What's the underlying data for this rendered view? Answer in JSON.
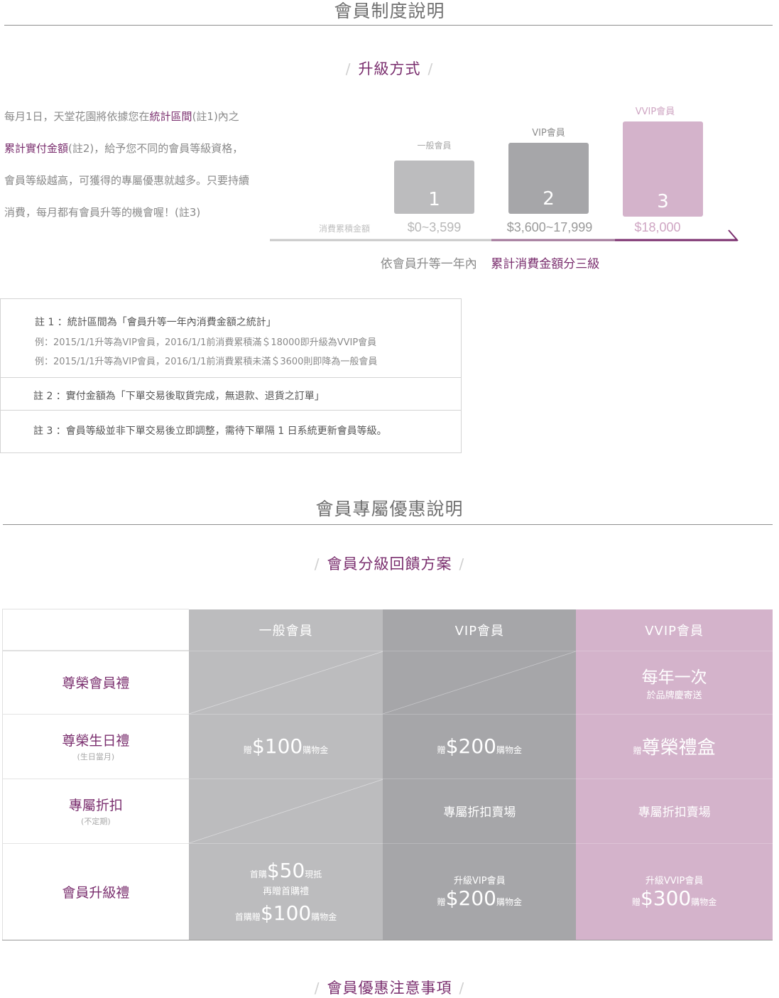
{
  "section1": {
    "title": "會員制度說明",
    "subtitle": "升級方式",
    "intro": {
      "p1": "每月1日，天堂花園將依據您在",
      "hl1": "統計區間",
      "p2": "(註1)內之",
      "hl2": "累計實付金額",
      "p3": "(註2)，給予您不同的會員等級資格，會員等級越高，可獲得的專屬優惠就越多。只要持續消費，每月都有會員升等的機會喔！(註3)"
    },
    "tiers": [
      {
        "label": "一般會員",
        "number": "1",
        "range": "$0~3,599"
      },
      {
        "label": "VIP會員",
        "number": "2",
        "range": "$3,600~17,999"
      },
      {
        "label": "VVIP會員",
        "number": "3",
        "range": "$18,000"
      }
    ],
    "axis_label": "消費累積金額",
    "caption_plain": "依會員升等一年內",
    "caption_highlight": "累計消費金額分三級",
    "notes": {
      "note1": "註 1 ：統計區間為「會員升等一年內消費金額之統計」",
      "note1_ex1": "例：2015/1/1升等為VIP會員，2016/1/1前消費累積滿＄18000即升級為VVIP會員",
      "note1_ex2": "例：2015/1/1升等為VIP會員，2016/1/1前消費累積未滿＄3600則即降為一般會員",
      "note2": "註 2 ：實付金額為「下單交易後取貨完成，無退款、退貨之訂單」",
      "note3": "註 3 ：會員等級並非下單交易後立即調整，需待下單隔 1 日系統更新會員等級。"
    }
  },
  "section2": {
    "title": "會員專屬優惠說明",
    "subtitle": "會員分級回饋方案",
    "table": {
      "headers": [
        "一般會員",
        "VIP會員",
        "VVIP會員"
      ],
      "rows": {
        "gift": {
          "label": "尊榮會員禮",
          "vvip_main": "每年一次",
          "vvip_sub": "於品牌慶寄送"
        },
        "birthday": {
          "label": "尊榮生日禮",
          "label_sub": "(生日當月)",
          "gen": {
            "pre": "贈",
            "amount": "$100",
            "post": "購物金"
          },
          "vip": {
            "pre": "贈",
            "amount": "$200",
            "post": "購物金"
          },
          "vvip": {
            "pre": "贈",
            "amount": "尊榮禮盒"
          }
        },
        "discount": {
          "label": "專屬折扣",
          "label_sub": "(不定期)",
          "vip": "專屬折扣賣場",
          "vvip": "專屬折扣賣場"
        },
        "upgrade": {
          "label": "會員升級禮",
          "gen_l1_pre": "首購",
          "gen_l1_amount": "$50",
          "gen_l1_post": "現抵",
          "gen_l2": "再贈首購禮",
          "gen_l3_pre": "首購贈",
          "gen_l3_amount": "$100",
          "gen_l3_post": "購物金",
          "vip_l1": "升級VIP會員",
          "vip_l2_pre": "贈",
          "vip_l2_amount": "$200",
          "vip_l2_post": "購物金",
          "vvip_l1": "升級VVIP會員",
          "vvip_l2_pre": "贈",
          "vvip_l2_amount": "$300",
          "vvip_l2_post": "購物金"
        }
      }
    }
  },
  "section3": {
    "subtitle": "會員優惠注意事項"
  },
  "colors": {
    "accent": "#7a2e6e",
    "tier1": "#bcbcbe",
    "tier2": "#a6a6a9",
    "tier3": "#d4b3cb"
  }
}
